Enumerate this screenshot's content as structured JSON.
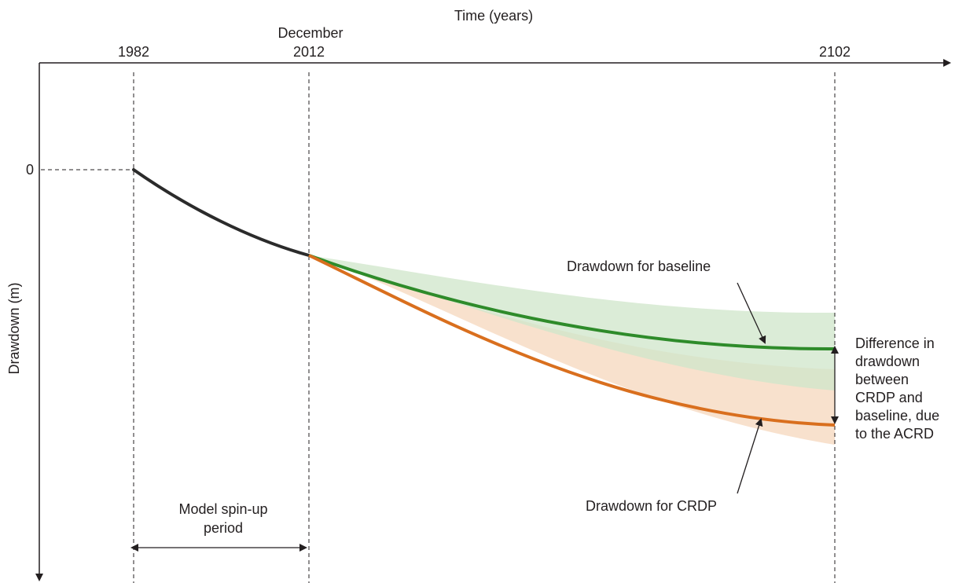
{
  "axes": {
    "x_title": "Time (years)",
    "y_title": "Drawdown (m)",
    "x_ticks": [
      {
        "key": "t1982",
        "lines": [
          "1982"
        ]
      },
      {
        "key": "t2012",
        "lines": [
          "December",
          "2012"
        ]
      },
      {
        "key": "t2102",
        "lines": [
          "2102"
        ]
      }
    ],
    "y_tick_zero": "0"
  },
  "labels": {
    "baseline": "Drawdown for baseline",
    "crdp": "Drawdown for CRDP",
    "spinup": [
      "Model spin-up",
      "period"
    ],
    "difference": [
      "Difference in",
      "drawdown",
      "between",
      "CRDP and",
      "baseline, due",
      "to the ACRD"
    ]
  },
  "colors": {
    "historical": "#2b2b2b",
    "baseline_line": "#2e8b2a",
    "baseline_band": "#cfe6c9",
    "crdp_line": "#d96f1e",
    "crdp_band": "#f7dcc4",
    "axis": "#231f20"
  }
}
